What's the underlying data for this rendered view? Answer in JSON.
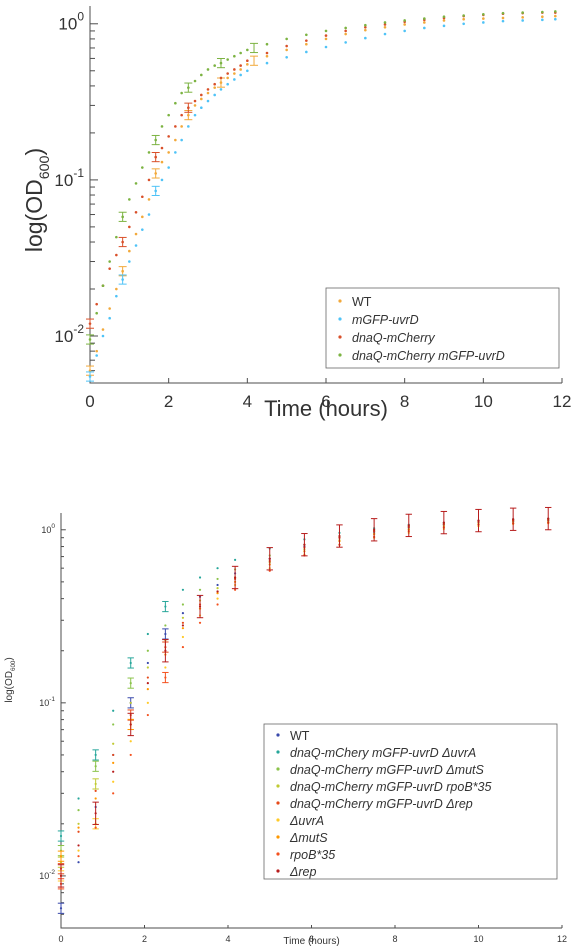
{
  "chart_data": [
    {
      "type": "scatter",
      "title": "",
      "xlabel": "Time (hours)",
      "ylabel": "log(OD600)",
      "ylabel_main": "log(OD",
      "ylabel_sub": "600",
      "ylabel_close": ")",
      "xlim": [
        0,
        12
      ],
      "ylim": [
        0.005,
        1.3
      ],
      "yscale": "log",
      "grid": false,
      "legend_position": "bottom-right",
      "x_ticks": [
        0,
        2,
        4,
        6,
        8,
        10,
        12
      ],
      "y_ticks": [
        {
          "value": 0.01,
          "base": "10",
          "exp": "-2"
        },
        {
          "value": 0.1,
          "base": "10",
          "exp": "-1"
        },
        {
          "value": 1,
          "base": "10",
          "exp": "0"
        }
      ],
      "series": [
        {
          "name": "WT",
          "color": "#f2a93b",
          "x": [
            0,
            0.17,
            0.33,
            0.5,
            0.67,
            0.83,
            1,
            1.17,
            1.33,
            1.5,
            1.67,
            1.83,
            2,
            2.17,
            2.33,
            2.5,
            2.67,
            2.83,
            3,
            3.17,
            3.33,
            3.5,
            3.67,
            3.83,
            4,
            4.5,
            5,
            5.5,
            6,
            6.5,
            7,
            7.5,
            8,
            8.5,
            9,
            9.5,
            10,
            10.5,
            11,
            11.5,
            11.83
          ],
          "y": [
            0.006,
            0.008,
            0.011,
            0.015,
            0.02,
            0.026,
            0.035,
            0.045,
            0.058,
            0.075,
            0.11,
            0.13,
            0.15,
            0.18,
            0.22,
            0.26,
            0.3,
            0.33,
            0.36,
            0.39,
            0.42,
            0.45,
            0.48,
            0.51,
            0.55,
            0.62,
            0.68,
            0.74,
            0.8,
            0.86,
            0.91,
            0.95,
            0.99,
            1.02,
            1.05,
            1.07,
            1.08,
            1.09,
            1.1,
            1.11,
            1.12
          ],
          "error_x": [
            0,
            0.83,
            1.67,
            2.5,
            3.33,
            4.17
          ],
          "error_y": [
            0.006,
            0.026,
            0.11,
            0.26,
            0.42,
            0.58
          ]
        },
        {
          "name": "mGFP-uvrD",
          "color": "#4fc3f7",
          "x": [
            0,
            0.17,
            0.33,
            0.5,
            0.67,
            0.83,
            1,
            1.17,
            1.33,
            1.5,
            1.67,
            1.83,
            2,
            2.17,
            2.33,
            2.5,
            2.67,
            2.83,
            3,
            3.17,
            3.33,
            3.5,
            3.67,
            3.83,
            4,
            4.5,
            5,
            5.5,
            6,
            6.5,
            7,
            7.5,
            8,
            8.5,
            9,
            9.5,
            10,
            10.5,
            11,
            11.5,
            11.83
          ],
          "y": [
            0.0055,
            0.0075,
            0.01,
            0.013,
            0.018,
            0.023,
            0.03,
            0.038,
            0.048,
            0.06,
            0.085,
            0.1,
            0.12,
            0.15,
            0.18,
            0.22,
            0.26,
            0.29,
            0.32,
            0.35,
            0.38,
            0.41,
            0.44,
            0.47,
            0.5,
            0.56,
            0.61,
            0.66,
            0.71,
            0.76,
            0.81,
            0.86,
            0.9,
            0.94,
            0.97,
            1.0,
            1.02,
            1.04,
            1.05,
            1.06,
            1.07
          ],
          "error_x": [
            0,
            0.83,
            1.67
          ],
          "error_y": [
            0.0055,
            0.023,
            0.085
          ]
        },
        {
          "name": "dnaQ-mCherry",
          "color": "#d9502a",
          "x": [
            0,
            0.17,
            0.33,
            0.5,
            0.67,
            0.83,
            1,
            1.17,
            1.33,
            1.5,
            1.67,
            1.83,
            2,
            2.17,
            2.33,
            2.5,
            2.67,
            2.83,
            3,
            3.17,
            3.33,
            3.5,
            3.67,
            3.83,
            4,
            4.5,
            5,
            5.5,
            6,
            6.5,
            7,
            7.5,
            8,
            8.5,
            9,
            9.5,
            10,
            10.5,
            11,
            11.5,
            11.83
          ],
          "y": [
            0.012,
            0.016,
            0.021,
            0.027,
            0.033,
            0.04,
            0.05,
            0.062,
            0.078,
            0.1,
            0.14,
            0.16,
            0.19,
            0.22,
            0.26,
            0.29,
            0.32,
            0.35,
            0.38,
            0.41,
            0.45,
            0.48,
            0.51,
            0.54,
            0.58,
            0.65,
            0.72,
            0.78,
            0.84,
            0.9,
            0.95,
            0.99,
            1.03,
            1.06,
            1.09,
            1.12,
            1.14,
            1.16,
            1.17,
            1.18,
            1.18
          ],
          "error_x": [
            0,
            0.83,
            1.67,
            2.5
          ],
          "error_y": [
            0.012,
            0.04,
            0.14,
            0.29
          ]
        },
        {
          "name": "dnaQ-mCherry mGFP-uvrD",
          "color": "#7cb342",
          "x": [
            0,
            0.17,
            0.33,
            0.5,
            0.67,
            0.83,
            1,
            1.17,
            1.33,
            1.5,
            1.67,
            1.83,
            2,
            2.17,
            2.33,
            2.5,
            2.67,
            2.83,
            3,
            3.17,
            3.33,
            3.5,
            3.67,
            3.83,
            4,
            4.5,
            5,
            5.5,
            6,
            6.5,
            7,
            7.5,
            8,
            8.5,
            9,
            9.5,
            10,
            10.5,
            11,
            11.5,
            11.83
          ],
          "y": [
            0.0095,
            0.014,
            0.021,
            0.03,
            0.043,
            0.058,
            0.075,
            0.095,
            0.12,
            0.15,
            0.18,
            0.22,
            0.26,
            0.31,
            0.36,
            0.39,
            0.43,
            0.47,
            0.51,
            0.54,
            0.56,
            0.59,
            0.62,
            0.65,
            0.68,
            0.74,
            0.8,
            0.85,
            0.9,
            0.94,
            0.98,
            1.02,
            1.05,
            1.08,
            1.11,
            1.13,
            1.15,
            1.17,
            1.18,
            1.19,
            1.2
          ],
          "error_x": [
            0,
            0.83,
            1.67,
            2.5,
            3.33,
            4.17
          ],
          "error_y": [
            0.0095,
            0.058,
            0.18,
            0.39,
            0.56,
            0.7
          ]
        }
      ]
    },
    {
      "type": "scatter",
      "title": "",
      "xlabel": "Time (hours)",
      "ylabel": "log(OD600)",
      "ylabel_main": "log(OD",
      "ylabel_sub": "600",
      "ylabel_close": ")",
      "xlim": [
        0,
        12
      ],
      "ylim": [
        0.005,
        1.25
      ],
      "yscale": "log",
      "grid": false,
      "legend_position": "bottom-right",
      "x_ticks": [
        0,
        2,
        4,
        6,
        8,
        10,
        12
      ],
      "y_ticks": [
        {
          "value": 0.01,
          "base": "10",
          "exp": "-2"
        },
        {
          "value": 0.1,
          "base": "10",
          "exp": "-1"
        },
        {
          "value": 1,
          "base": "10",
          "exp": "0"
        }
      ],
      "series": [
        {
          "name": "WT",
          "color": "#3949ab",
          "x": [
            0,
            0.42,
            0.83,
            1.25,
            1.67,
            2.08,
            2.5,
            2.92,
            3.33,
            3.75,
            4.17,
            5,
            5.83,
            6.67,
            7.5,
            8.33,
            9.17,
            10,
            10.83,
            11.67
          ],
          "y": [
            0.0065,
            0.012,
            0.025,
            0.05,
            0.1,
            0.17,
            0.25,
            0.33,
            0.41,
            0.48,
            0.56,
            0.68,
            0.8,
            0.9,
            0.97,
            1.03,
            1.07,
            1.1,
            1.12,
            1.13
          ],
          "error_x": [
            0,
            1.67,
            2.5
          ],
          "error_y": [
            0.0065,
            0.1,
            0.25
          ]
        },
        {
          "name": "dnaQ-mChery mGFP-uvrD ΔuvrA",
          "color": "#26a69a",
          "x": [
            0,
            0.42,
            0.83,
            1.25,
            1.67,
            2.08,
            2.5,
            2.92,
            3.33,
            3.75,
            4.17,
            5,
            5.83,
            6.67,
            7.5,
            8.33,
            9.17,
            10,
            10.83,
            11.67
          ],
          "y": [
            0.017,
            0.028,
            0.05,
            0.09,
            0.17,
            0.25,
            0.36,
            0.45,
            0.53,
            0.6,
            0.67,
            0.78,
            0.88,
            0.96,
            1.02,
            1.07,
            1.1,
            1.13,
            1.15,
            1.16
          ],
          "error_x": [
            0,
            0.83,
            1.67,
            2.5
          ],
          "error_y": [
            0.017,
            0.05,
            0.17,
            0.36
          ]
        },
        {
          "name": "dnaQ-mCherry mGFP-uvrD ΔmutS",
          "color": "#8bc34a",
          "x": [
            0,
            0.42,
            0.83,
            1.25,
            1.67,
            2.08,
            2.5,
            2.92,
            3.33,
            3.75,
            4.17,
            5,
            5.83,
            6.67,
            7.5,
            8.33,
            9.17,
            10,
            10.83,
            11.67
          ],
          "y": [
            0.014,
            0.024,
            0.043,
            0.075,
            0.13,
            0.2,
            0.28,
            0.37,
            0.45,
            0.52,
            0.59,
            0.71,
            0.82,
            0.92,
            0.99,
            1.05,
            1.09,
            1.12,
            1.14,
            1.15
          ],
          "error_x": [
            0,
            0.83,
            1.67
          ],
          "error_y": [
            0.014,
            0.043,
            0.13
          ]
        },
        {
          "name": "dnaQ-mCherry mGFP-uvrD rpoB*35",
          "color": "#c0ca33",
          "x": [
            0,
            0.42,
            0.83,
            1.25,
            1.67,
            2.08,
            2.5,
            2.92,
            3.33,
            3.75,
            4.17,
            5,
            5.83,
            6.67,
            7.5,
            8.33,
            9.17,
            10,
            10.83,
            11.67
          ],
          "y": [
            0.012,
            0.02,
            0.034,
            0.058,
            0.1,
            0.16,
            0.23,
            0.31,
            0.39,
            0.46,
            0.53,
            0.65,
            0.77,
            0.87,
            0.95,
            1.01,
            1.06,
            1.09,
            1.11,
            1.12
          ],
          "error_x": [
            0,
            0.83
          ],
          "error_y": [
            0.012,
            0.034
          ]
        },
        {
          "name": "dnaQ-mCherry mGFP-uvrD Δrep",
          "color": "#e64a19",
          "x": [
            0,
            0.42,
            0.83,
            1.25,
            1.67,
            2.08,
            2.5,
            2.92,
            3.33,
            3.75,
            4.17,
            5,
            5.83,
            6.67,
            7.5,
            8.33,
            9.17,
            10,
            10.83,
            11.67
          ],
          "y": [
            0.011,
            0.018,
            0.031,
            0.05,
            0.085,
            0.14,
            0.21,
            0.29,
            0.37,
            0.44,
            0.52,
            0.66,
            0.79,
            0.9,
            0.98,
            1.04,
            1.08,
            1.11,
            1.13,
            1.14
          ],
          "error_x": [
            0,
            1.67,
            2.5
          ],
          "error_y": [
            0.011,
            0.085,
            0.21
          ]
        },
        {
          "name": "ΔuvrA",
          "color": "#ffca28",
          "x": [
            0,
            0.42,
            0.83,
            1.25,
            1.67,
            2.08,
            2.5,
            2.92,
            3.33,
            3.75,
            4.17,
            5,
            5.83,
            6.67,
            7.5,
            8.33,
            9.17,
            10,
            10.83,
            11.67
          ],
          "y": [
            0.01,
            0.014,
            0.02,
            0.035,
            0.06,
            0.1,
            0.16,
            0.24,
            0.32,
            0.4,
            0.48,
            0.6,
            0.72,
            0.82,
            0.9,
            0.96,
            1.01,
            1.05,
            1.08,
            1.09
          ],
          "error_x": [
            0,
            0.83
          ],
          "error_y": [
            0.01,
            0.02
          ]
        },
        {
          "name": "ΔmutS",
          "color": "#ff9800",
          "x": [
            0,
            0.42,
            0.83,
            1.25,
            1.67,
            2.08,
            2.5,
            2.92,
            3.33,
            3.75,
            4.17,
            5,
            5.83,
            6.67,
            7.5,
            8.33,
            9.17,
            10,
            10.83,
            11.67
          ],
          "y": [
            0.013,
            0.019,
            0.028,
            0.045,
            0.075,
            0.12,
            0.19,
            0.27,
            0.35,
            0.43,
            0.5,
            0.63,
            0.75,
            0.86,
            0.94,
            1.0,
            1.04,
            1.07,
            1.09,
            1.1
          ],
          "error_x": [
            0,
            1.67
          ],
          "error_y": [
            0.013,
            0.075
          ]
        },
        {
          "name": "rpoB*35",
          "color": "#f4511e",
          "x": [
            0,
            0.42,
            0.83,
            1.25,
            1.67,
            2.08,
            2.5,
            2.92,
            3.33,
            3.75,
            4.17,
            5,
            5.83,
            6.67,
            7.5,
            8.33,
            9.17,
            10,
            10.83,
            11.67
          ],
          "y": [
            0.009,
            0.013,
            0.019,
            0.03,
            0.05,
            0.085,
            0.14,
            0.21,
            0.29,
            0.37,
            0.45,
            0.58,
            0.71,
            0.82,
            0.91,
            0.98,
            1.03,
            1.07,
            1.09,
            1.1
          ],
          "error_x": [
            0,
            2.5
          ],
          "error_y": [
            0.009,
            0.14
          ]
        },
        {
          "name": "Δrep",
          "color": "#b71c1c",
          "x": [
            0,
            0.42,
            0.83,
            1.25,
            1.67,
            2.08,
            2.5,
            2.92,
            3.33,
            3.75,
            4.17,
            5,
            5.83,
            6.67,
            7.5,
            8.33,
            9.17,
            10,
            10.83,
            11.67
          ],
          "y": [
            0.01,
            0.015,
            0.023,
            0.04,
            0.075,
            0.13,
            0.2,
            0.28,
            0.36,
            0.44,
            0.53,
            0.68,
            0.82,
            0.92,
            1.0,
            1.06,
            1.1,
            1.13,
            1.15,
            1.16
          ],
          "error_x": [
            0,
            0.83,
            1.67,
            2.5,
            3.33,
            4.17,
            5,
            5.83,
            6.67,
            7.5,
            8.33,
            9.17,
            10,
            10.83,
            11.67
          ],
          "error_y": [
            0.01,
            0.023,
            0.075,
            0.2,
            0.36,
            0.53,
            0.68,
            0.82,
            0.92,
            1.0,
            1.06,
            1.1,
            1.13,
            1.15,
            1.16
          ]
        }
      ]
    }
  ]
}
